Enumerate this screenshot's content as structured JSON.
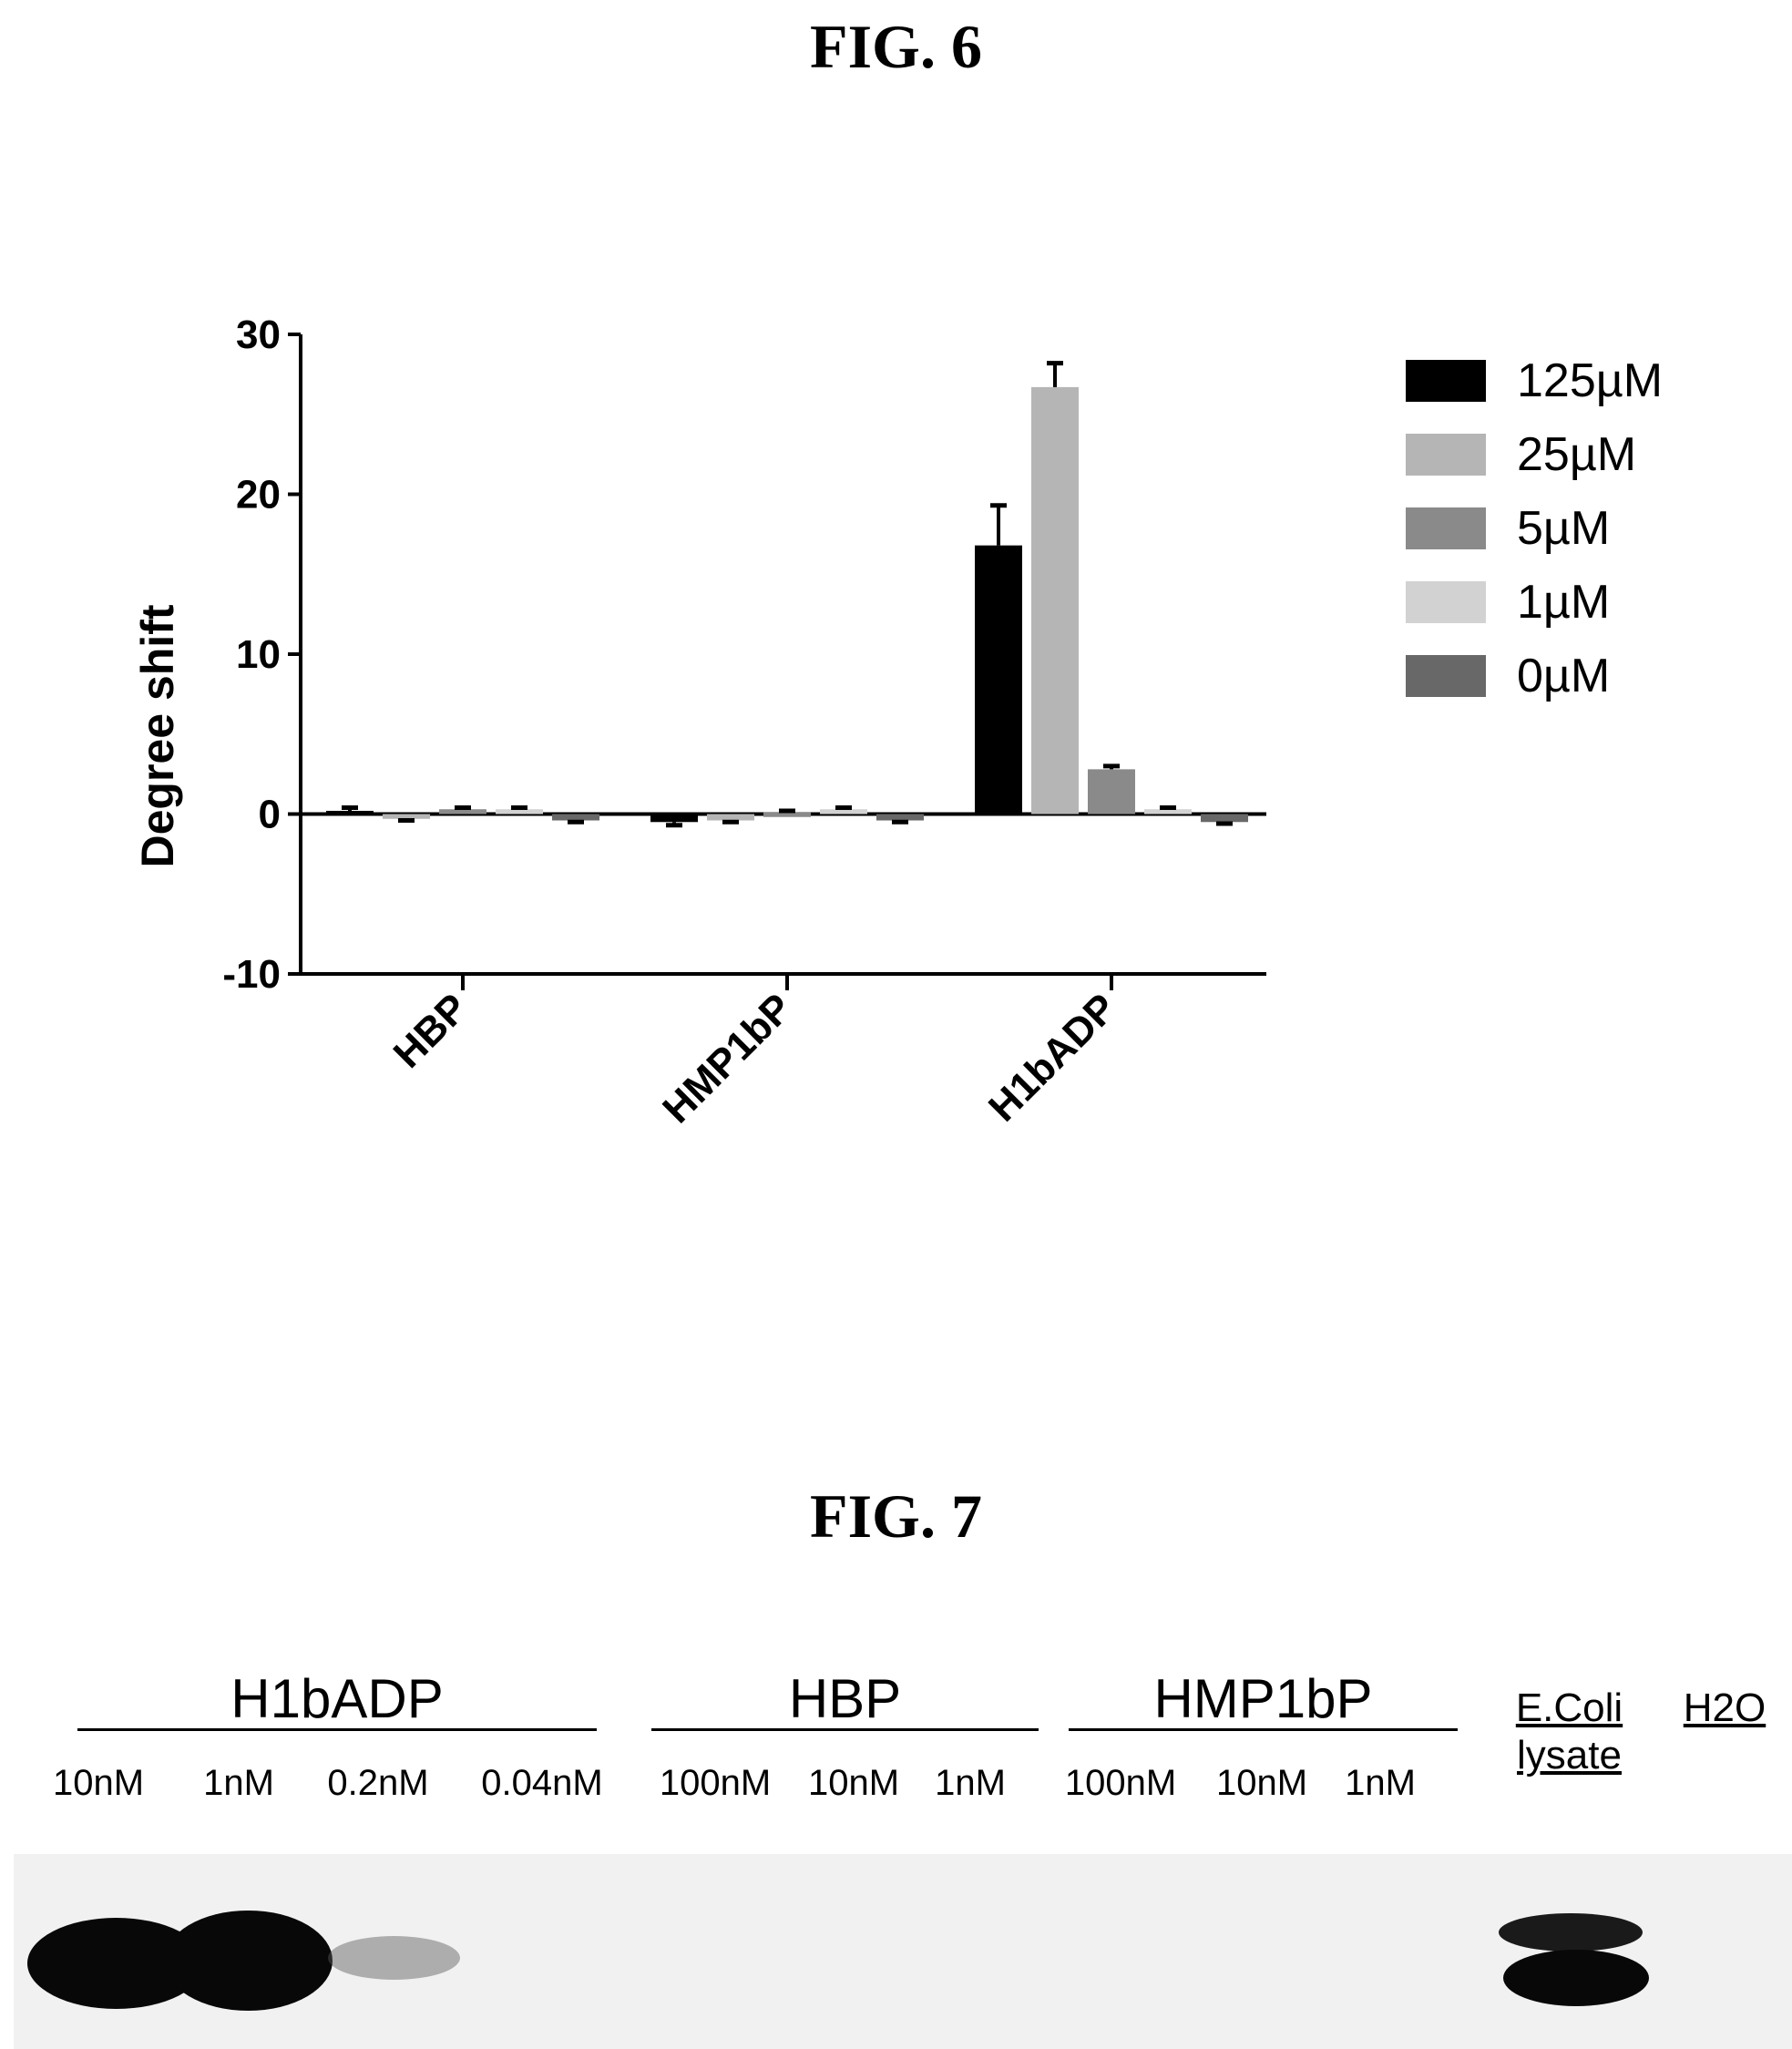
{
  "fig6": {
    "title": "FIG. 6",
    "chart_data": {
      "type": "bar",
      "ylabel": "Degree shift",
      "ylim": [
        -10,
        30
      ],
      "yticks": [
        30,
        20,
        10,
        0,
        -10
      ],
      "categories": [
        "HBP",
        "HMP1bP",
        "H1bADP"
      ],
      "legend_placement": "right",
      "series": [
        {
          "name": "125µM",
          "color": "#000000",
          "values": [
            0.2,
            -0.5,
            16.8
          ],
          "errors": [
            0.2,
            0.2,
            2.5
          ]
        },
        {
          "name": "25µM",
          "color": "#b5b5b5",
          "values": [
            -0.3,
            -0.4,
            26.7
          ],
          "errors": [
            0.1,
            0.1,
            1.5
          ]
        },
        {
          "name": "5µM",
          "color": "#8a8a8a",
          "values": [
            0.3,
            0.1,
            2.8
          ],
          "errors": [
            0.1,
            0.1,
            0.2
          ]
        },
        {
          "name": "1µM",
          "color": "#d2d2d2",
          "values": [
            0.3,
            0.3,
            0.3
          ],
          "errors": [
            0.1,
            0.1,
            0.1
          ]
        },
        {
          "name": "0µM",
          "color": "#686868",
          "values": [
            -0.4,
            -0.4,
            -0.5
          ],
          "errors": [
            0.1,
            0.1,
            0.1
          ]
        }
      ]
    }
  },
  "fig7": {
    "title": "FIG. 7",
    "groups": [
      {
        "label": "H1bADP",
        "lanes": [
          "10nM",
          "1nM",
          "0.2nM",
          "0.04nM"
        ]
      },
      {
        "label": "HBP",
        "lanes": [
          "100nM",
          "10nM",
          "1nM"
        ]
      },
      {
        "label": "HMP1bP",
        "lanes": [
          "100nM",
          "10nM",
          "1nM"
        ]
      }
    ],
    "controls": {
      "ecoli_line1": "E.Coli",
      "ecoli_line2": "lysate",
      "water": "H2O"
    }
  }
}
